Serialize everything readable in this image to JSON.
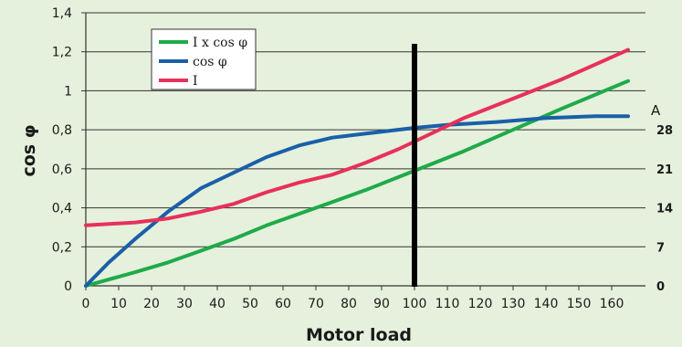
{
  "chart_data": {
    "type": "line",
    "xlabel": "Motor load",
    "ylabel": "cos φ",
    "xlim": [
      0,
      165
    ],
    "ylim": [
      0,
      1.4
    ],
    "x_ticks": [
      "0",
      "10",
      "20",
      "30",
      "40",
      "50",
      "60",
      "70",
      "80",
      "90",
      "100",
      "110",
      "120",
      "130",
      "140",
      "150",
      "160"
    ],
    "y_ticks": [
      "0",
      "0,2",
      "0,4",
      "0,6",
      "0,8",
      "1",
      "1,2",
      "1,4"
    ],
    "grid": "horizontal",
    "legend_position": "top-left",
    "right_axis": {
      "label": "A",
      "ticks": [
        {
          "label": "0",
          "at": 0
        },
        {
          "label": "7",
          "at": 0.2
        },
        {
          "label": "14",
          "at": 0.4
        },
        {
          "label": "21",
          "at": 0.6
        },
        {
          "label": "28",
          "at": 0.8
        }
      ]
    },
    "marker_x": 100,
    "series": [
      {
        "name": "I x cos φ",
        "color": "#1faa4a",
        "x": [
          0,
          15,
          25,
          35,
          45,
          55,
          65,
          75,
          85,
          100,
          115,
          130,
          145,
          165
        ],
        "y": [
          0,
          0.07,
          0.12,
          0.18,
          0.24,
          0.31,
          0.37,
          0.43,
          0.49,
          0.59,
          0.69,
          0.8,
          0.91,
          1.05
        ]
      },
      {
        "name": "cos φ",
        "color": "#1a5fa8",
        "x": [
          0,
          7,
          15,
          25,
          35,
          45,
          55,
          65,
          75,
          85,
          95,
          100,
          110,
          125,
          140,
          155,
          165
        ],
        "y": [
          0,
          0.12,
          0.24,
          0.38,
          0.5,
          0.58,
          0.66,
          0.72,
          0.76,
          0.78,
          0.8,
          0.81,
          0.825,
          0.84,
          0.86,
          0.87,
          0.87
        ]
      },
      {
        "name": "I",
        "color": "#e8305a",
        "x": [
          0,
          15,
          25,
          35,
          45,
          55,
          65,
          75,
          85,
          95,
          100,
          115,
          130,
          145,
          165
        ],
        "y": [
          0.31,
          0.325,
          0.345,
          0.38,
          0.42,
          0.48,
          0.53,
          0.57,
          0.63,
          0.7,
          0.74,
          0.86,
          0.96,
          1.06,
          1.21
        ]
      }
    ]
  }
}
